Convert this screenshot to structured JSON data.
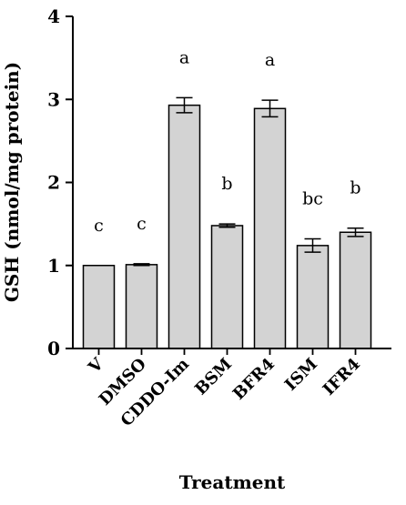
{
  "chart_data": {
    "type": "bar",
    "categories": [
      "V",
      "DMSO",
      "CDDO-Im",
      "BSM",
      "BFR4",
      "ISM",
      "IFR4"
    ],
    "values": [
      1.0,
      1.01,
      2.93,
      1.48,
      2.89,
      1.24,
      1.4
    ],
    "errors": [
      0.0,
      0.01,
      0.09,
      0.02,
      0.1,
      0.08,
      0.05
    ],
    "significance": [
      "c",
      "c",
      "a",
      "b",
      "a",
      "bc",
      "b"
    ],
    "xlabel": "Treatment",
    "ylabel": "GSH (nmol/mg protein)",
    "ylim": [
      0,
      4
    ],
    "yticks": [
      0,
      1,
      2,
      3,
      4
    ],
    "bar_color": "#d3d3d3",
    "edge_color": "#000000",
    "grid": false,
    "legend": "none"
  }
}
